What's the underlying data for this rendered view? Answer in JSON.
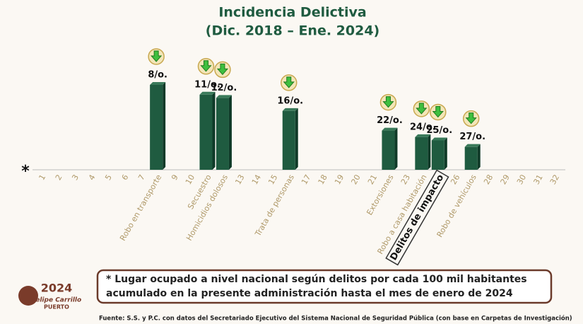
{
  "chart_data": {
    "type": "bar",
    "title": "Incidencia Delictiva",
    "subtitle": "(Dic. 2018 – Ene. 2024)",
    "marker": "*",
    "categories": [
      "1",
      "2",
      "3",
      "4",
      "5",
      "6",
      "7",
      "Robo en transporte",
      "9",
      "10",
      "Secuestro",
      "Homicidios dolosos",
      "13",
      "14",
      "15",
      "Trata de personas",
      "17",
      "18",
      "19",
      "20",
      "21",
      "Extorsiones",
      "23",
      "Robo a casa habitación",
      "Delitos de impacto",
      "26",
      "Robo de vehículos",
      "28",
      "29",
      "30",
      "31",
      "32"
    ],
    "values": [
      null,
      null,
      null,
      null,
      null,
      null,
      null,
      8,
      null,
      null,
      11,
      12,
      null,
      null,
      null,
      16,
      null,
      null,
      null,
      null,
      null,
      22,
      null,
      24,
      25,
      null,
      27,
      null,
      null,
      null,
      null,
      null
    ],
    "value_labels": [
      null,
      null,
      null,
      null,
      null,
      null,
      null,
      "8/o.",
      null,
      null,
      "11/o.",
      "12/o.",
      null,
      null,
      null,
      "16/o.",
      null,
      null,
      null,
      null,
      null,
      "22/o.",
      null,
      "24/o.",
      "25/o.",
      null,
      "27/o.",
      null,
      null,
      null,
      null,
      null
    ],
    "color": "#1f5b40",
    "ylim": [
      34,
      0
    ],
    "boxed_category_index": 24,
    "note": [
      "* Lugar ocupado a nivel nacional según delitos por cada 100 mil habitantes",
      "acumulado en la presente administración hasta el mes de enero de 2024"
    ],
    "source": "Fuente: S.S. y P.C. con datos del Secretariado Ejecutivo del Sistema Nacional de Seguridad Pública (con base en Carpetas de Investigación)",
    "logo": [
      "2024",
      "Felipe Carrillo",
      "PUERTO"
    ]
  }
}
